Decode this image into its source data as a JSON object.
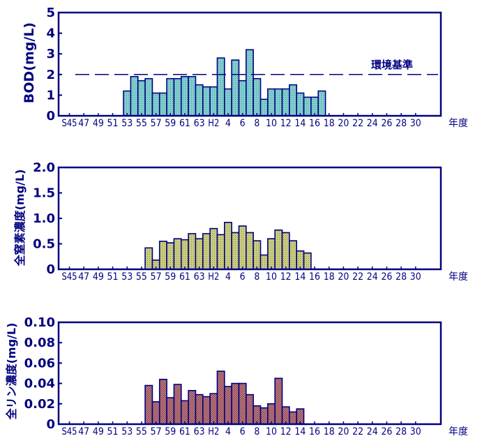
{
  "chart_data": [
    {
      "type": "bar",
      "ylabel": "BOD(mg/L)",
      "xlabel": "年度",
      "ylim": [
        0,
        5
      ],
      "yticks": [
        "0",
        "1",
        "2",
        "3",
        "4",
        "5"
      ],
      "xticks": [
        "S45",
        "47",
        "49",
        "51",
        "53",
        "55",
        "57",
        "59",
        "61",
        "63",
        "H2",
        "4",
        "6",
        "8",
        "10",
        "12",
        "14",
        "16",
        "18",
        "20",
        "22",
        "24",
        "26",
        "28",
        "30"
      ],
      "categories": [
        "S45",
        "S46",
        "S47",
        "S48",
        "S49",
        "S50",
        "S51",
        "S52",
        "S53",
        "S54",
        "S55",
        "S56",
        "S57",
        "S58",
        "S59",
        "S60",
        "S61",
        "S62",
        "S63",
        "H1",
        "H2",
        "H3",
        "H4",
        "H5",
        "H6",
        "H7",
        "H8",
        "H9",
        "H10",
        "H11",
        "H12",
        "H13",
        "H14",
        "H15",
        "H16",
        "H17",
        "H18",
        "H19",
        "H20",
        "H21",
        "H22",
        "H23",
        "H24",
        "H25",
        "H26",
        "H27",
        "H28",
        "H29",
        "H30",
        "H31",
        "H32"
      ],
      "values": [
        null,
        null,
        null,
        null,
        null,
        null,
        null,
        null,
        1.2,
        1.9,
        1.7,
        1.8,
        1.1,
        1.1,
        1.8,
        1.8,
        1.9,
        1.9,
        1.5,
        1.4,
        1.4,
        2.8,
        1.3,
        2.7,
        1.7,
        3.2,
        1.8,
        0.8,
        1.3,
        1.3,
        1.3,
        1.5,
        1.1,
        0.9,
        0.9,
        1.2,
        null,
        null,
        null,
        null,
        null,
        null,
        null,
        null,
        null,
        null,
        null,
        null,
        null,
        null,
        null
      ],
      "reference": {
        "label": "環境基準",
        "value": 2.0
      },
      "fill_color": "#7fcfcf",
      "edge_color": "#000080"
    },
    {
      "type": "bar",
      "ylabel": "全窒素濃度(mg/L)",
      "xlabel": "年度",
      "ylim": [
        0,
        2.0
      ],
      "yticks": [
        "0",
        "0.5",
        "1.0",
        "1.5",
        "2.0"
      ],
      "xticks": [
        "S45",
        "47",
        "49",
        "51",
        "53",
        "55",
        "57",
        "59",
        "61",
        "63",
        "H2",
        "4",
        "6",
        "8",
        "10",
        "12",
        "14",
        "16",
        "18",
        "20",
        "22",
        "24",
        "26",
        "28",
        "30"
      ],
      "categories": [
        "S45",
        "S46",
        "S47",
        "S48",
        "S49",
        "S50",
        "S51",
        "S52",
        "S53",
        "S54",
        "S55",
        "S56",
        "S57",
        "S58",
        "S59",
        "S60",
        "S61",
        "S62",
        "S63",
        "H1",
        "H2",
        "H3",
        "H4",
        "H5",
        "H6",
        "H7",
        "H8",
        "H9",
        "H10",
        "H11",
        "H12",
        "H13",
        "H14",
        "H15",
        "H16",
        "H17",
        "H18",
        "H19",
        "H20",
        "H21",
        "H22",
        "H23",
        "H24",
        "H25",
        "H26",
        "H27",
        "H28",
        "H29",
        "H30",
        "H31",
        "H32"
      ],
      "values": [
        null,
        null,
        null,
        null,
        null,
        null,
        null,
        null,
        null,
        null,
        null,
        0.42,
        0.18,
        0.55,
        0.52,
        0.6,
        0.58,
        0.7,
        0.6,
        0.7,
        0.8,
        0.68,
        0.92,
        0.72,
        0.85,
        0.72,
        0.56,
        0.28,
        0.6,
        0.77,
        0.72,
        0.56,
        0.36,
        0.32,
        null,
        null,
        null,
        null,
        null,
        null,
        null,
        null,
        null,
        null,
        null,
        null,
        null,
        null,
        null,
        null,
        null
      ],
      "fill_color": "#cccc7a",
      "edge_color": "#000080"
    },
    {
      "type": "bar",
      "ylabel": "全リン濃度(mg/L)",
      "xlabel": "年度",
      "ylim": [
        0,
        0.1
      ],
      "yticks": [
        "0",
        "0.02",
        "0.04",
        "0.06",
        "0.08",
        "0.10"
      ],
      "xticks": [
        "S45",
        "47",
        "49",
        "51",
        "53",
        "55",
        "57",
        "59",
        "61",
        "63",
        "H2",
        "4",
        "6",
        "8",
        "10",
        "12",
        "14",
        "16",
        "18",
        "20",
        "22",
        "24",
        "26",
        "28",
        "30"
      ],
      "categories": [
        "S45",
        "S46",
        "S47",
        "S48",
        "S49",
        "S50",
        "S51",
        "S52",
        "S53",
        "S54",
        "S55",
        "S56",
        "S57",
        "S58",
        "S59",
        "S60",
        "S61",
        "S62",
        "S63",
        "H1",
        "H2",
        "H3",
        "H4",
        "H5",
        "H6",
        "H7",
        "H8",
        "H9",
        "H10",
        "H11",
        "H12",
        "H13",
        "H14",
        "H15",
        "H16",
        "H17",
        "H18",
        "H19",
        "H20",
        "H21",
        "H22",
        "H23",
        "H24",
        "H25",
        "H26",
        "H27",
        "H28",
        "H29",
        "H30",
        "H31",
        "H32"
      ],
      "values": [
        null,
        null,
        null,
        null,
        null,
        null,
        null,
        null,
        null,
        null,
        null,
        0.038,
        0.022,
        0.044,
        0.026,
        0.039,
        0.023,
        0.033,
        0.029,
        0.027,
        0.03,
        0.052,
        0.037,
        0.04,
        0.04,
        0.029,
        0.018,
        0.016,
        0.02,
        0.045,
        0.017,
        0.012,
        0.015,
        null,
        null,
        null,
        null,
        null,
        null,
        null,
        null,
        null,
        null,
        null,
        null,
        null,
        null,
        null,
        null,
        null,
        null
      ],
      "fill_color": "#d08a8a",
      "edge_color": "#000080"
    }
  ]
}
